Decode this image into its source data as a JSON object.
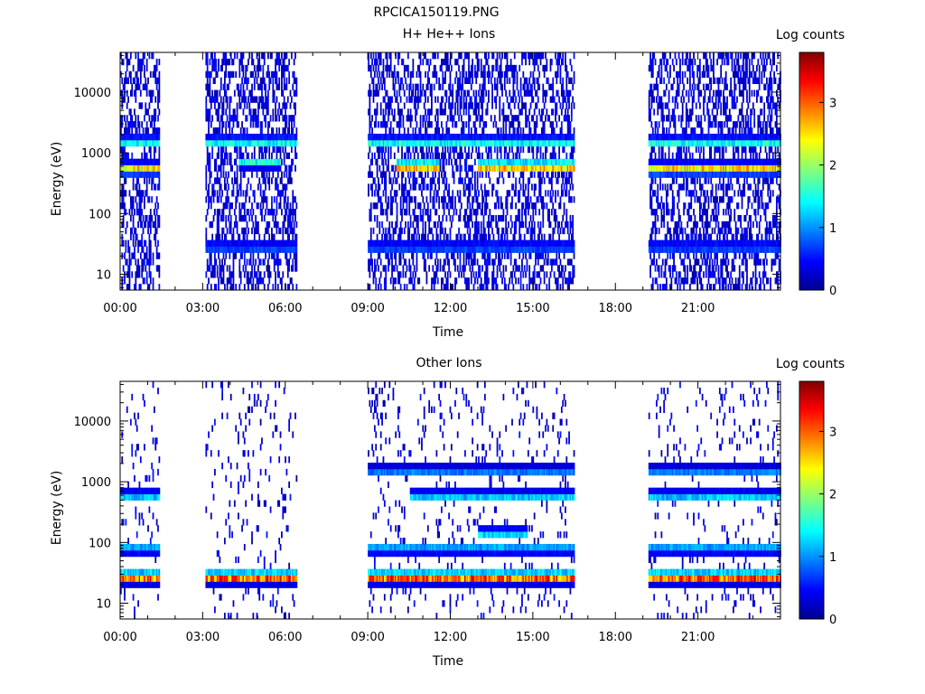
{
  "figure_title": "RPCICA150119.PNG",
  "chart_data": [
    {
      "type": "heatmap",
      "title": "H+ He++ Ions",
      "xlabel": "Time",
      "ylabel": "Energy (eV)",
      "x_ticks": [
        "00:00",
        "03:00",
        "06:00",
        "09:00",
        "12:00",
        "15:00",
        "18:00",
        "21:00"
      ],
      "x_tick_hours": [
        0,
        3,
        6,
        9,
        12,
        15,
        18,
        21
      ],
      "xlim_hours": [
        0,
        24
      ],
      "y_scale": "log",
      "ylim": [
        5.5,
        45000
      ],
      "y_ticks": [
        "10",
        "100",
        "1000",
        "10000"
      ],
      "y_tick_values": [
        10,
        100,
        1000,
        10000
      ],
      "colorbar": {
        "label": "Log counts",
        "range": [
          0,
          3.8
        ],
        "ticks": [
          "0",
          "1",
          "2",
          "3"
        ],
        "tick_values": [
          0,
          1,
          2,
          3
        ],
        "colormap": "jet"
      },
      "data_intervals_hours": [
        [
          0.0,
          1.4
        ],
        [
          3.1,
          6.4
        ],
        [
          9.0,
          16.5
        ],
        [
          19.2,
          24.0
        ]
      ],
      "features": [
        {
          "energy_eV": 1500,
          "hours": [
            [
              0.0,
              1.4
            ],
            [
              3.1,
              6.4
            ],
            [
              9.0,
              16.5
            ],
            [
              19.2,
              24.0
            ]
          ],
          "level": 1.6
        },
        {
          "energy_eV": 550,
          "hours": [
            [
              0.0,
              1.4
            ],
            [
              19.2,
              24.0
            ]
          ],
          "level": 2.6
        },
        {
          "energy_eV": 700,
          "hours": [
            [
              4.3,
              5.8
            ]
          ],
          "level": 1.6
        },
        {
          "energy_eV": 600,
          "hours": [
            [
              10.0,
              11.6
            ],
            [
              13.0,
              16.5
            ]
          ],
          "level": 3.0
        },
        {
          "energy_eV": 28,
          "hours": [
            [
              3.1,
              6.4
            ],
            [
              9.0,
              16.5
            ],
            [
              19.2,
              24.0
            ]
          ],
          "level": 0.9
        }
      ]
    },
    {
      "type": "heatmap",
      "title": "Other Ions",
      "xlabel": "Time",
      "ylabel": "Energy (eV)",
      "x_ticks": [
        "00:00",
        "03:00",
        "06:00",
        "09:00",
        "12:00",
        "15:00",
        "18:00",
        "21:00"
      ],
      "x_tick_hours": [
        0,
        3,
        6,
        9,
        12,
        15,
        18,
        21
      ],
      "xlim_hours": [
        0,
        24
      ],
      "y_scale": "log",
      "ylim": [
        5.5,
        45000
      ],
      "y_ticks": [
        "10",
        "100",
        "1000",
        "10000"
      ],
      "y_tick_values": [
        10,
        100,
        1000,
        10000
      ],
      "colorbar": {
        "label": "Log counts",
        "range": [
          0,
          3.8
        ],
        "ticks": [
          "0",
          "1",
          "2",
          "3"
        ],
        "tick_values": [
          0,
          1,
          2,
          3
        ],
        "colormap": "jet"
      },
      "data_intervals_hours": [
        [
          0.0,
          1.4
        ],
        [
          3.1,
          6.4
        ],
        [
          9.0,
          16.5
        ],
        [
          19.2,
          24.0
        ]
      ],
      "features": [
        {
          "energy_eV": 27,
          "hours": [
            [
              0.0,
              1.4
            ],
            [
              3.1,
              6.4
            ],
            [
              9.0,
              16.5
            ],
            [
              19.2,
              24.0
            ]
          ],
          "level": 3.3
        },
        {
          "energy_eV": 80,
          "hours": [
            [
              0.0,
              1.4
            ],
            [
              9.0,
              16.5
            ],
            [
              19.2,
              24.0
            ]
          ],
          "level": 1.2
        },
        {
          "energy_eV": 140,
          "hours": [
            [
              13.0,
              14.8
            ]
          ],
          "level": 1.4
        },
        {
          "energy_eV": 1500,
          "hours": [
            [
              9.0,
              16.5
            ],
            [
              19.2,
              24.0
            ]
          ],
          "level": 1.0
        },
        {
          "energy_eV": 580,
          "hours": [
            [
              0.0,
              1.4
            ],
            [
              10.5,
              16.5
            ],
            [
              19.2,
              24.0
            ]
          ],
          "level": 1.3
        }
      ]
    }
  ]
}
